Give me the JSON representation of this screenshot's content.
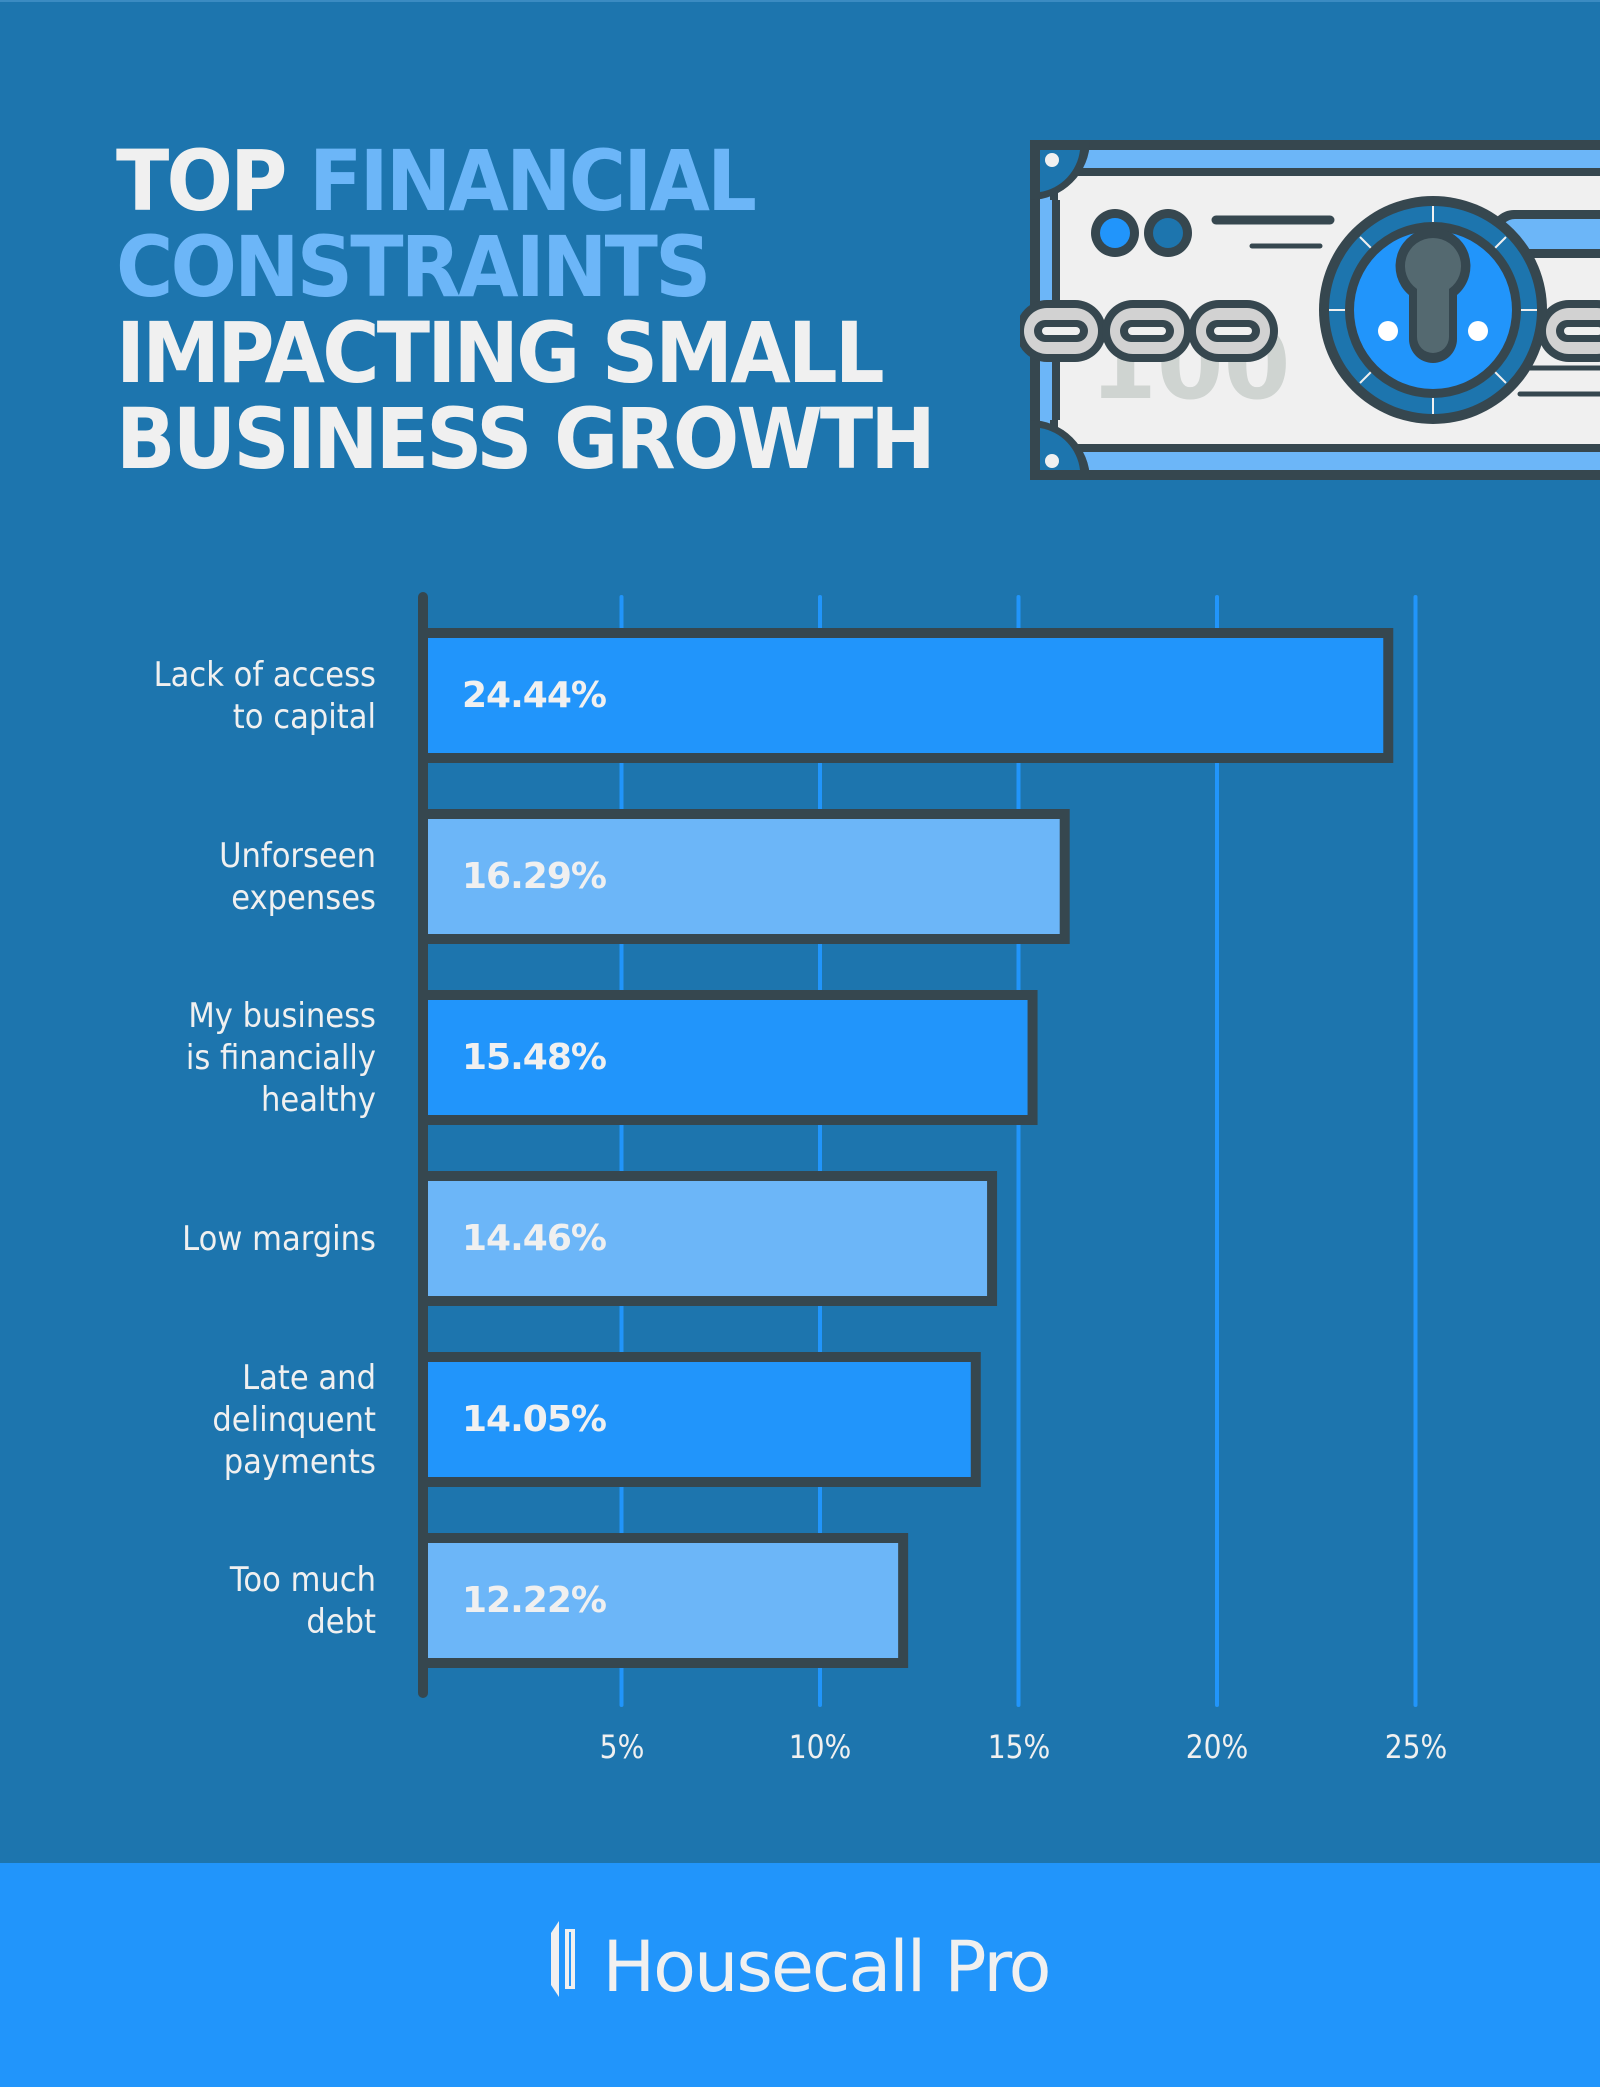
{
  "header": {
    "title_lines": [
      [
        {
          "text": "TOP ",
          "highlight": false
        },
        {
          "text": "FINANCIAL",
          "highlight": true
        }
      ],
      [
        {
          "text": "CONSTRAINTS",
          "highlight": true
        }
      ],
      [
        {
          "text": "IMPACTING SMALL",
          "highlight": false
        }
      ],
      [
        {
          "text": "BUSINESS GROWTH",
          "highlight": false
        }
      ]
    ],
    "illustration": {
      "description": "chained dollar bill with padlock",
      "bill_denomination": "100"
    }
  },
  "colors": {
    "background": "#1d75ae",
    "accent_dark_bar": "#2195fb",
    "accent_light_bar": "#6cb6f8",
    "outline": "#36474f",
    "gridline": "#2195fb",
    "text": "#f0f0f0",
    "footer": "#2195fb"
  },
  "chart_data": {
    "type": "bar",
    "orientation": "horizontal",
    "title": "Top Financial Constraints Impacting Small Business Growth",
    "xlabel": "",
    "ylabel": "",
    "categories": [
      "Lack of access to capital",
      "Unforseen expenses",
      "My business is financially healthy",
      "Low margins",
      "Late and delinquent payments",
      "Too much debt"
    ],
    "category_lines": [
      [
        "Lack of access",
        "to capital"
      ],
      [
        "Unforseen",
        "expenses"
      ],
      [
        "My business",
        "is financially",
        "healthy"
      ],
      [
        "Low margins"
      ],
      [
        "Late and",
        "delinquent",
        "payments"
      ],
      [
        "Too much",
        "debt"
      ]
    ],
    "values": [
      24.44,
      16.29,
      15.48,
      14.46,
      14.05,
      12.22
    ],
    "value_labels": [
      "24.44%",
      "16.29%",
      "15.48%",
      "14.46%",
      "14.05%",
      "12.22%"
    ],
    "bar_styles": [
      "dark",
      "light",
      "dark",
      "light",
      "dark",
      "light"
    ],
    "xlim": [
      0,
      25
    ],
    "xticks": [
      5,
      10,
      15,
      20,
      25
    ],
    "xtick_labels": [
      "5%",
      "10%",
      "15%",
      "20%",
      "25%"
    ],
    "grid": true,
    "legend": "none"
  },
  "footer": {
    "brand": "Housecall Pro"
  }
}
